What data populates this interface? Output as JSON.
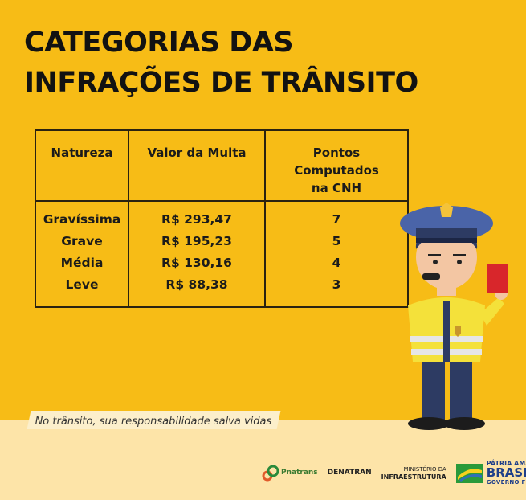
{
  "title": {
    "line1": "CATEGORIAS DAS",
    "line2": "INFRAÇÕES DE TRÂNSITO"
  },
  "table": {
    "headers": [
      "Natureza",
      "Valor da Multa",
      "Pontos Computados na CNH"
    ],
    "rows": [
      [
        "Gravíssima",
        "R$ 293,47",
        "7"
      ],
      [
        "Grave",
        "R$ 195,23",
        "5"
      ],
      [
        "Média",
        "R$ 130,16",
        "4"
      ],
      [
        "Leve",
        "R$ 88,38",
        "3"
      ]
    ]
  },
  "slogan": "No trânsito, sua responsabilidade salva vidas",
  "logos": {
    "pnatrans": "Pnatrans",
    "denatran": "DENATRAN",
    "ministerio_line1": "MINISTÉRIO DA",
    "ministerio_line2": "INFRAESTRUTURA",
    "brasil_line1": "PÁTRIA AMADA",
    "brasil_line2": "BRASIL",
    "brasil_line3": "GOVERNO FEDERAL"
  },
  "colors": {
    "background": "#F7BC16",
    "footer": "#FDE4A8",
    "text": "#121212"
  }
}
